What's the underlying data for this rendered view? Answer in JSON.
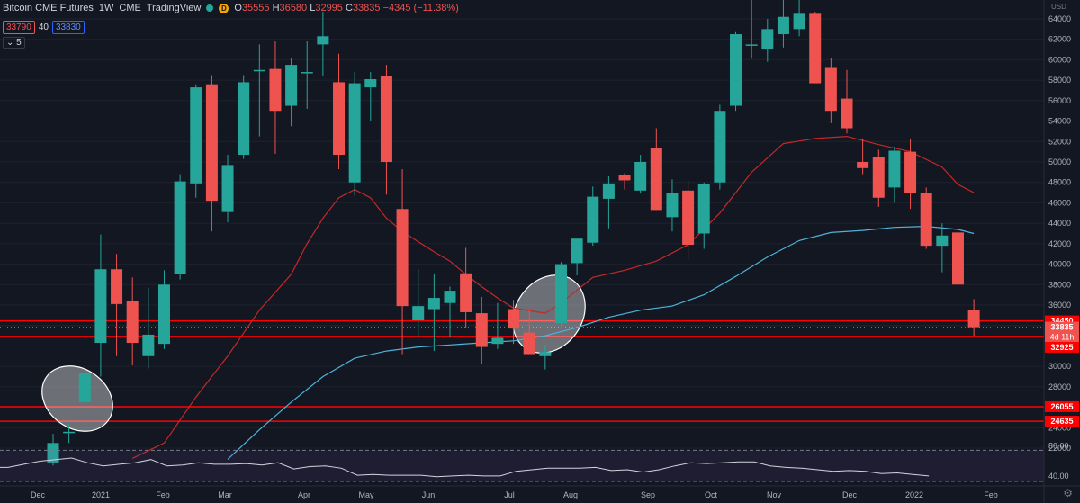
{
  "header": {
    "symbol": "Bitcoin CME Futures",
    "interval": "1W",
    "exchange": "CME",
    "source": "TradingView",
    "badge": "D",
    "open_label": "O",
    "open": "35555",
    "high_label": "H",
    "high": "36580",
    "low_label": "L",
    "low": "32995",
    "close_label": "C",
    "close": "33835",
    "change": "−4345 (−11.38%)",
    "bid": "33790",
    "spread": "40",
    "ask": "33830",
    "indicator_count": "5"
  },
  "axis": {
    "currency": "USD",
    "y_ticks": [
      "64000",
      "62000",
      "60000",
      "58000",
      "56000",
      "54000",
      "52000",
      "50000",
      "48000",
      "46000",
      "44000",
      "42000",
      "40000",
      "38000",
      "36000",
      "34000",
      "32000",
      "30000",
      "28000",
      "26000",
      "24000",
      "22000"
    ],
    "x_ticks": [
      "Dec",
      "2021",
      "Feb",
      "Mar",
      "Apr",
      "May",
      "Jun",
      "Jul",
      "Aug",
      "Sep",
      "Oct",
      "Nov",
      "Dec",
      "2022",
      "Feb"
    ],
    "rsi_ticks": [
      "80.00",
      "40.00"
    ]
  },
  "price_labels": {
    "level_1": "34450",
    "last_price": "33835",
    "countdown": "4d 11h",
    "level_2": "32925",
    "level_3": "26055",
    "level_4": "24635"
  },
  "colors": {
    "up": "#26a69a",
    "down": "#ef5350",
    "background": "#131722",
    "ma_fast": "#c62828",
    "ma_slow": "#4fb3d9",
    "rsi": "#d1d4dc",
    "level_line": "#ff0000"
  },
  "chart_data": {
    "type": "candlestick",
    "y_unit": "USD",
    "ylim": [
      21000,
      66000
    ],
    "horizontal_levels": [
      34450,
      32925,
      26055,
      24635
    ],
    "candles": [
      {
        "o": 20600,
        "h": 23400,
        "l": 20300,
        "c": 22500
      },
      {
        "o": 23500,
        "h": 24400,
        "l": 22500,
        "c": 23600
      },
      {
        "o": 26500,
        "h": 29500,
        "l": 26000,
        "c": 29400
      },
      {
        "o": 32300,
        "h": 42900,
        "l": 29000,
        "c": 39500
      },
      {
        "o": 39500,
        "h": 41000,
        "l": 31000,
        "c": 36100
      },
      {
        "o": 36400,
        "h": 38700,
        "l": 30100,
        "c": 32300
      },
      {
        "o": 31000,
        "h": 37700,
        "l": 29800,
        "c": 33100
      },
      {
        "o": 32200,
        "h": 39400,
        "l": 31700,
        "c": 38000
      },
      {
        "o": 39000,
        "h": 48800,
        "l": 38500,
        "c": 48100
      },
      {
        "o": 47900,
        "h": 57600,
        "l": 46500,
        "c": 57300
      },
      {
        "o": 57600,
        "h": 58500,
        "l": 43200,
        "c": 46200
      },
      {
        "o": 45100,
        "h": 50700,
        "l": 44100,
        "c": 49700
      },
      {
        "o": 50700,
        "h": 58500,
        "l": 50300,
        "c": 57800
      },
      {
        "o": 59000,
        "h": 61500,
        "l": 52500,
        "c": 59000
      },
      {
        "o": 59100,
        "h": 61800,
        "l": 50800,
        "c": 55000
      },
      {
        "o": 55500,
        "h": 60200,
        "l": 53500,
        "c": 59500
      },
      {
        "o": 58700,
        "h": 61800,
        "l": 55200,
        "c": 58800
      },
      {
        "o": 61500,
        "h": 64700,
        "l": 58400,
        "c": 62300
      },
      {
        "o": 57800,
        "h": 60600,
        "l": 49300,
        "c": 50700
      },
      {
        "o": 48000,
        "h": 58800,
        "l": 46700,
        "c": 57700
      },
      {
        "o": 57300,
        "h": 58800,
        "l": 54000,
        "c": 58100
      },
      {
        "o": 58400,
        "h": 59500,
        "l": 46800,
        "c": 50000
      },
      {
        "o": 45400,
        "h": 49300,
        "l": 31200,
        "c": 35900
      },
      {
        "o": 34500,
        "h": 39500,
        "l": 32800,
        "c": 35900
      },
      {
        "o": 35600,
        "h": 39000,
        "l": 31500,
        "c": 36700
      },
      {
        "o": 36200,
        "h": 37800,
        "l": 32800,
        "c": 37400
      },
      {
        "o": 39100,
        "h": 41600,
        "l": 33800,
        "c": 35300
      },
      {
        "o": 35200,
        "h": 36800,
        "l": 30200,
        "c": 31900
      },
      {
        "o": 32200,
        "h": 36200,
        "l": 31700,
        "c": 32800
      },
      {
        "o": 35600,
        "h": 36500,
        "l": 32200,
        "c": 33700
      },
      {
        "o": 33300,
        "h": 35500,
        "l": 31200,
        "c": 31200
      },
      {
        "o": 31000,
        "h": 32100,
        "l": 29700,
        "c": 31400
      },
      {
        "o": 34200,
        "h": 40200,
        "l": 33600,
        "c": 40000
      },
      {
        "o": 40100,
        "h": 42200,
        "l": 38900,
        "c": 42500
      },
      {
        "o": 42100,
        "h": 47600,
        "l": 41800,
        "c": 46600
      },
      {
        "o": 46400,
        "h": 48600,
        "l": 43500,
        "c": 47900
      },
      {
        "o": 48700,
        "h": 48900,
        "l": 47300,
        "c": 48200
      },
      {
        "o": 47200,
        "h": 50700,
        "l": 46900,
        "c": 50000
      },
      {
        "o": 51400,
        "h": 53300,
        "l": 45300,
        "c": 45300
      },
      {
        "o": 44600,
        "h": 48300,
        "l": 43200,
        "c": 47000
      },
      {
        "o": 47200,
        "h": 48200,
        "l": 40500,
        "c": 41900
      },
      {
        "o": 43000,
        "h": 48000,
        "l": 41500,
        "c": 47800
      },
      {
        "o": 48000,
        "h": 55600,
        "l": 47300,
        "c": 55000
      },
      {
        "o": 55500,
        "h": 62700,
        "l": 55000,
        "c": 62500
      },
      {
        "o": 61500,
        "h": 67000,
        "l": 60100,
        "c": 61500
      },
      {
        "o": 61000,
        "h": 64000,
        "l": 59800,
        "c": 63000
      },
      {
        "o": 62500,
        "h": 68000,
        "l": 61200,
        "c": 64200
      },
      {
        "o": 63000,
        "h": 66500,
        "l": 62300,
        "c": 64500
      },
      {
        "o": 64500,
        "h": 64700,
        "l": 57800,
        "c": 57700
      },
      {
        "o": 59200,
        "h": 60200,
        "l": 53800,
        "c": 55000
      },
      {
        "o": 56200,
        "h": 59000,
        "l": 52800,
        "c": 53300
      },
      {
        "o": 50000,
        "h": 52300,
        "l": 48800,
        "c": 49400
      },
      {
        "o": 50500,
        "h": 51200,
        "l": 45600,
        "c": 46500
      },
      {
        "o": 47500,
        "h": 51500,
        "l": 46000,
        "c": 51100
      },
      {
        "o": 51000,
        "h": 52300,
        "l": 45400,
        "c": 47000
      },
      {
        "o": 47000,
        "h": 47500,
        "l": 41500,
        "c": 41800
      },
      {
        "o": 41800,
        "h": 44000,
        "l": 39200,
        "c": 42800
      },
      {
        "o": 43100,
        "h": 43500,
        "l": 35900,
        "c": 38000
      },
      {
        "o": 35555,
        "h": 36580,
        "l": 32995,
        "c": 33835
      }
    ],
    "ma_fast": [
      [
        5,
        21000
      ],
      [
        7,
        22500
      ],
      [
        9,
        27000
      ],
      [
        11,
        31000
      ],
      [
        13,
        35500
      ],
      [
        15,
        39000
      ],
      [
        16,
        42000
      ],
      [
        17,
        44500
      ],
      [
        18,
        46500
      ],
      [
        19,
        47300
      ],
      [
        20,
        46500
      ],
      [
        21,
        44500
      ],
      [
        22,
        43200
      ],
      [
        23,
        42200
      ],
      [
        24,
        41200
      ],
      [
        25,
        40300
      ],
      [
        26,
        39000
      ],
      [
        27,
        37800
      ],
      [
        28,
        36700
      ],
      [
        29,
        35700
      ],
      [
        31,
        35200
      ],
      [
        32,
        36200
      ],
      [
        34,
        38700
      ],
      [
        36,
        39400
      ],
      [
        38,
        40300
      ],
      [
        40,
        41900
      ],
      [
        42,
        45000
      ],
      [
        44,
        49000
      ],
      [
        46,
        51800
      ],
      [
        48,
        52300
      ],
      [
        50,
        52500
      ],
      [
        52,
        51700
      ],
      [
        54,
        51000
      ],
      [
        56,
        49500
      ],
      [
        57,
        47800
      ],
      [
        58,
        47000
      ]
    ],
    "ma_slow": [
      [
        11,
        20900
      ],
      [
        13,
        23800
      ],
      [
        15,
        26500
      ],
      [
        17,
        29000
      ],
      [
        19,
        30800
      ],
      [
        21,
        31500
      ],
      [
        23,
        31900
      ],
      [
        25,
        32100
      ],
      [
        27,
        32300
      ],
      [
        29,
        32500
      ],
      [
        31,
        33000
      ],
      [
        33,
        33800
      ],
      [
        35,
        34800
      ],
      [
        37,
        35500
      ],
      [
        39,
        35900
      ],
      [
        41,
        37000
      ],
      [
        43,
        38800
      ],
      [
        45,
        40700
      ],
      [
        47,
        42300
      ],
      [
        49,
        43100
      ],
      [
        51,
        43300
      ],
      [
        53,
        43600
      ],
      [
        55,
        43700
      ],
      [
        57,
        43400
      ],
      [
        58,
        43000
      ]
    ],
    "rsi_ylim": [
      30,
      90
    ],
    "rsi_levels": [
      70,
      30
    ],
    "rsi": [
      48,
      52,
      56,
      58,
      60,
      54,
      50,
      52,
      54,
      58,
      50,
      51,
      54,
      52,
      52,
      53,
      51,
      54,
      46,
      49,
      50,
      47,
      38,
      39,
      38,
      38,
      38,
      36,
      37,
      38,
      37,
      37,
      43,
      45,
      47,
      47,
      47,
      48,
      44,
      45,
      42,
      45,
      50,
      54,
      53,
      54,
      55,
      55,
      50,
      48,
      47,
      45,
      43,
      44,
      43,
      40,
      41,
      39,
      37
    ]
  }
}
